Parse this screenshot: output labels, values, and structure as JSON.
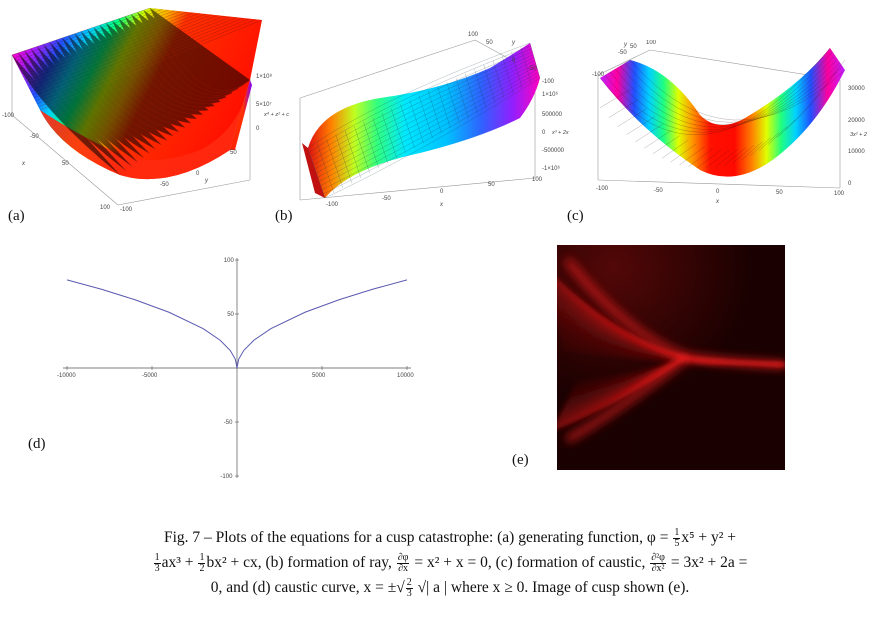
{
  "panels": {
    "a": {
      "label": "(a)",
      "x_label": "x",
      "y_label": "y",
      "z_label": "x⁴ + z² + c",
      "x_ticks": [
        "-100",
        "-50",
        "0",
        "50",
        "100"
      ],
      "y_ticks": [
        "-100",
        "-50",
        "0",
        "50",
        "100"
      ],
      "z_ticks": [
        "1×10⁸",
        "5×10⁷",
        "0"
      ]
    },
    "b": {
      "label": "(b)",
      "x_label": "x",
      "y_label": "y",
      "z_label": "x³ + 2x",
      "x_ticks": [
        "-100",
        "-50",
        "0",
        "50",
        "100"
      ],
      "y_ticks": [
        "100",
        "50",
        "0",
        "-50",
        "-100"
      ],
      "z_ticks": [
        "1×10⁶",
        "500000",
        "0",
        "-500000",
        "-1×10⁶"
      ]
    },
    "c": {
      "label": "(c)",
      "x_label": "x",
      "y_label": "y",
      "z_label": "3x² + 2",
      "x_ticks": [
        "-100",
        "-50",
        "0",
        "50",
        "100"
      ],
      "y_ticks": [
        "-100",
        "-50",
        "0",
        "50",
        "100"
      ],
      "z_ticks": [
        "30000",
        "20000",
        "10000",
        "0"
      ]
    },
    "d": {
      "label": "(d)",
      "x_ticks": [
        "-10000",
        "-5000",
        "5000",
        "10000"
      ],
      "y_ticks": [
        "100",
        "50",
        "-50",
        "-100"
      ]
    },
    "e": {
      "label": "(e)"
    }
  },
  "chart_data": {
    "type": "line",
    "x_range": [
      -10000,
      10000
    ],
    "y_range": [
      -100,
      100
    ],
    "series": [
      {
        "x": [
          -10000,
          -8000,
          -6000,
          -4000,
          -2000,
          -1000,
          -400,
          -100,
          0
        ],
        "y": [
          81.6,
          73.0,
          63.2,
          51.6,
          36.5,
          25.8,
          16.3,
          8.2,
          0
        ]
      },
      {
        "x": [
          0,
          100,
          400,
          1000,
          2000,
          4000,
          6000,
          8000,
          10000
        ],
        "y": [
          0,
          8.2,
          16.3,
          25.8,
          36.5,
          51.6,
          63.2,
          73.0,
          81.6
        ]
      }
    ],
    "line_color": "#5a5ab0"
  },
  "caption": {
    "line1_pre": "Fig. 7 – Plots of the equations for a cusp catastrophe: (a) generating function, φ = ",
    "line1_f1_num": "1",
    "line1_f1_den": "5",
    "line1_post": "x⁵ + y² +",
    "line2_f2_num": "1",
    "line2_f2_den": "3",
    "line2_a": "ax³ + ",
    "line2_f3_num": "1",
    "line2_f3_den": "2",
    "line2_b": "bx² + cx, (b) formation of ray, ",
    "line2_f4_num": "∂φ",
    "line2_f4_den": "∂x",
    "line2_c": " = x² + x = 0, (c) formation of caustic, ",
    "line2_f5_num": "∂²φ",
    "line2_f5_den": "∂x²",
    "line2_d": " = 3x² + 2a =",
    "line3_a": "0, and (d) caustic curve, x = ±√",
    "line3_f6_num": "2",
    "line3_f6_den": "3",
    "line3_b": " √| a |  where x ≥ 0. Image of cusp shown (e)."
  }
}
